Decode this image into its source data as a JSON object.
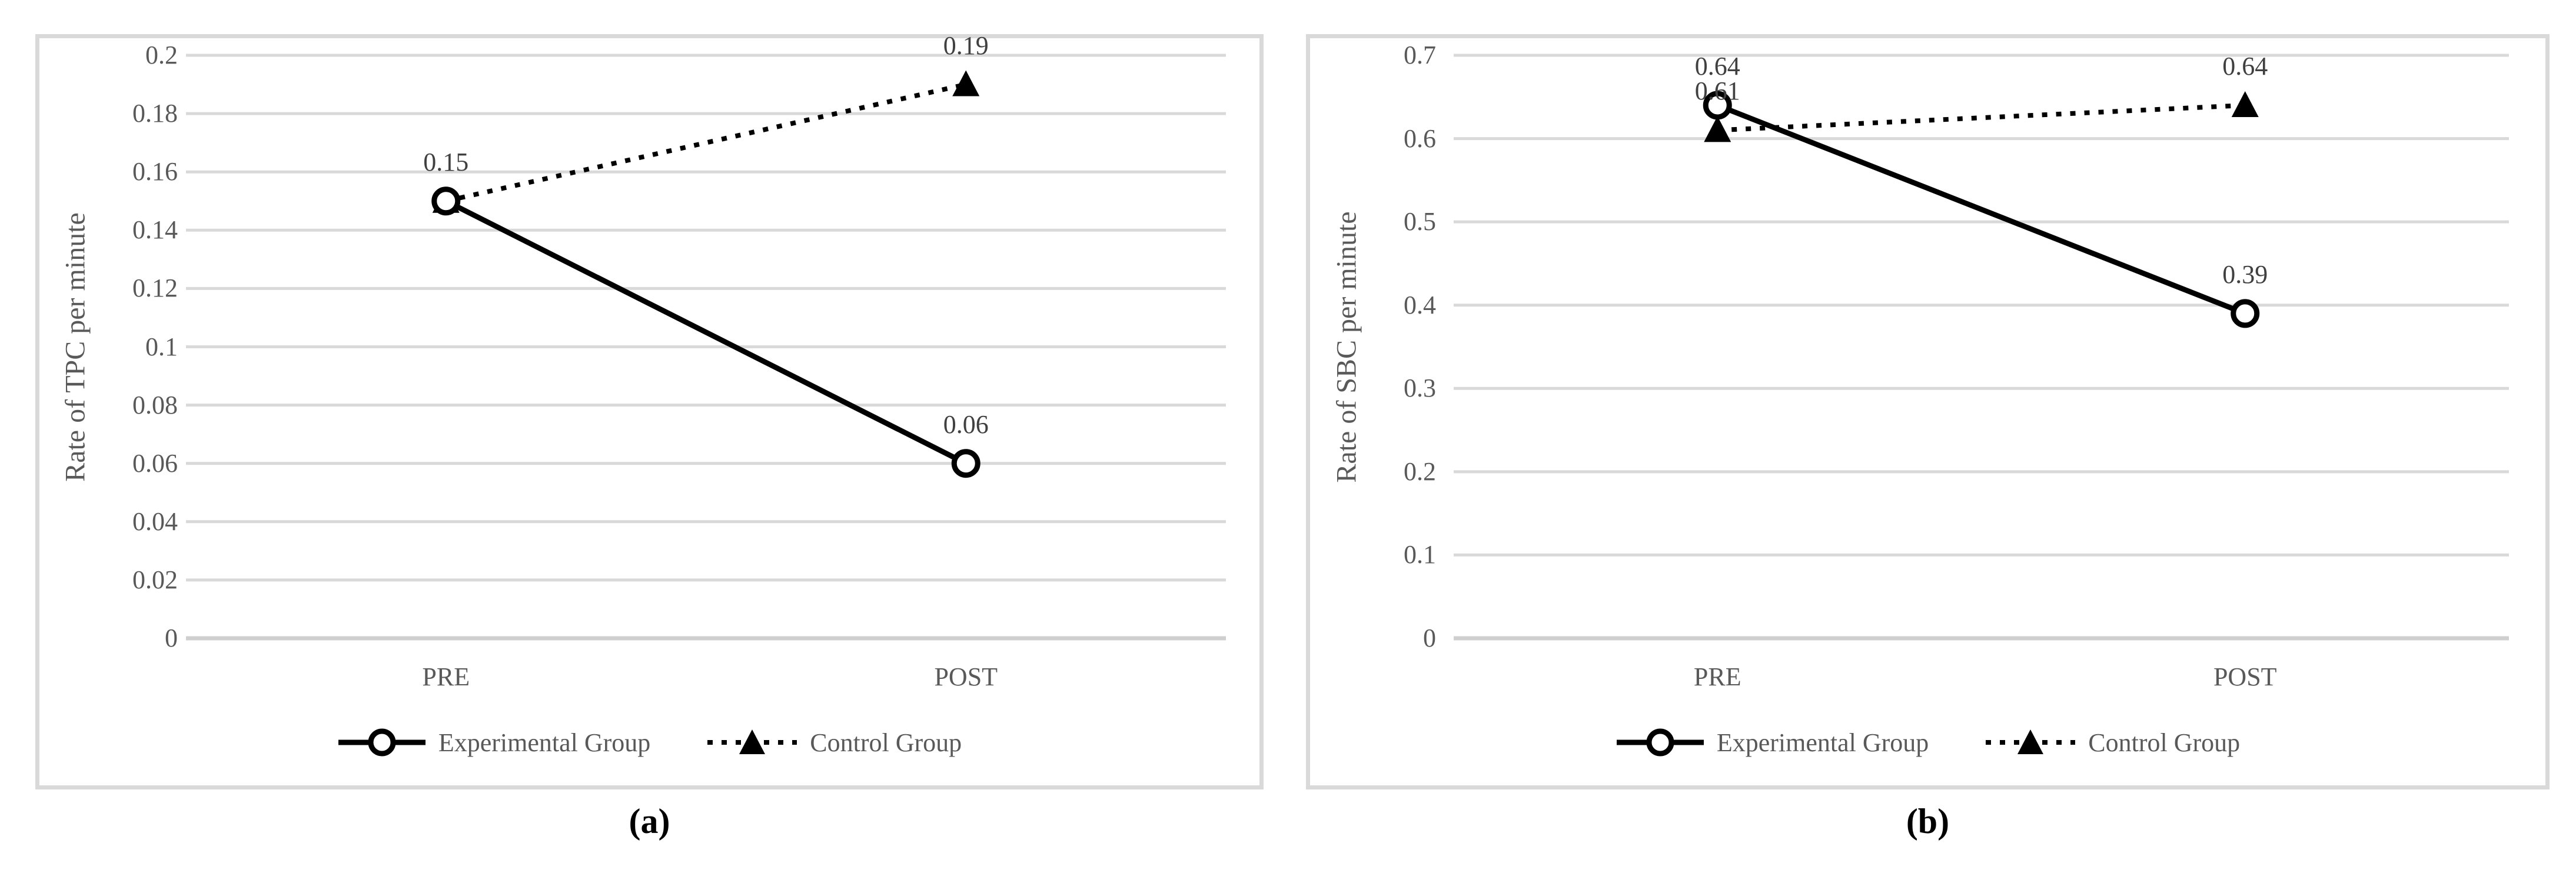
{
  "figure": {
    "captions": {
      "a": "(a)",
      "b": "(b)"
    },
    "colors": {
      "series_line": "#000000",
      "grid": "#d9d9d9",
      "axis_line": "#cfcfcf",
      "tick_text": "#595959",
      "data_label_text": "#404040",
      "panel_border": "#d9d9d9"
    }
  },
  "chart_data": [
    {
      "type": "line",
      "panel": "a",
      "ylabel": "Rate of TPC per minute",
      "categories": [
        "PRE",
        "POST"
      ],
      "ylim": [
        0,
        0.2
      ],
      "ytick_step": 0.02,
      "yticks": [
        "0.2",
        "0.18",
        "0.16",
        "0.14",
        "0.12",
        "0.1",
        "0.08",
        "0.06",
        "0.04",
        "0.02",
        "0"
      ],
      "grid": true,
      "legend_position": "bottom",
      "series": [
        {
          "name": "Experimental Group",
          "marker": "circle",
          "line_style": "solid",
          "values": [
            0.15,
            0.06
          ],
          "point_labels": [
            "0.15",
            "0.06"
          ]
        },
        {
          "name": "Control Group",
          "marker": "triangle",
          "line_style": "dotted",
          "values": [
            0.15,
            0.19
          ],
          "point_labels": [
            null,
            "0.19"
          ]
        }
      ]
    },
    {
      "type": "line",
      "panel": "b",
      "ylabel": "Rate of SBC per minute",
      "categories": [
        "PRE",
        "POST"
      ],
      "ylim": [
        0,
        0.7
      ],
      "ytick_step": 0.1,
      "yticks": [
        "0.7",
        "0.6",
        "0.5",
        "0.4",
        "0.3",
        "0.2",
        "0.1",
        "0"
      ],
      "grid": true,
      "legend_position": "bottom",
      "series": [
        {
          "name": "Experimental Group",
          "marker": "circle",
          "line_style": "solid",
          "values": [
            0.64,
            0.39
          ],
          "point_labels": [
            "0.64",
            "0.39"
          ]
        },
        {
          "name": "Control Group",
          "marker": "triangle",
          "line_style": "dotted",
          "values": [
            0.61,
            0.64
          ],
          "point_labels": [
            "0.61",
            "0.64"
          ]
        }
      ]
    }
  ]
}
